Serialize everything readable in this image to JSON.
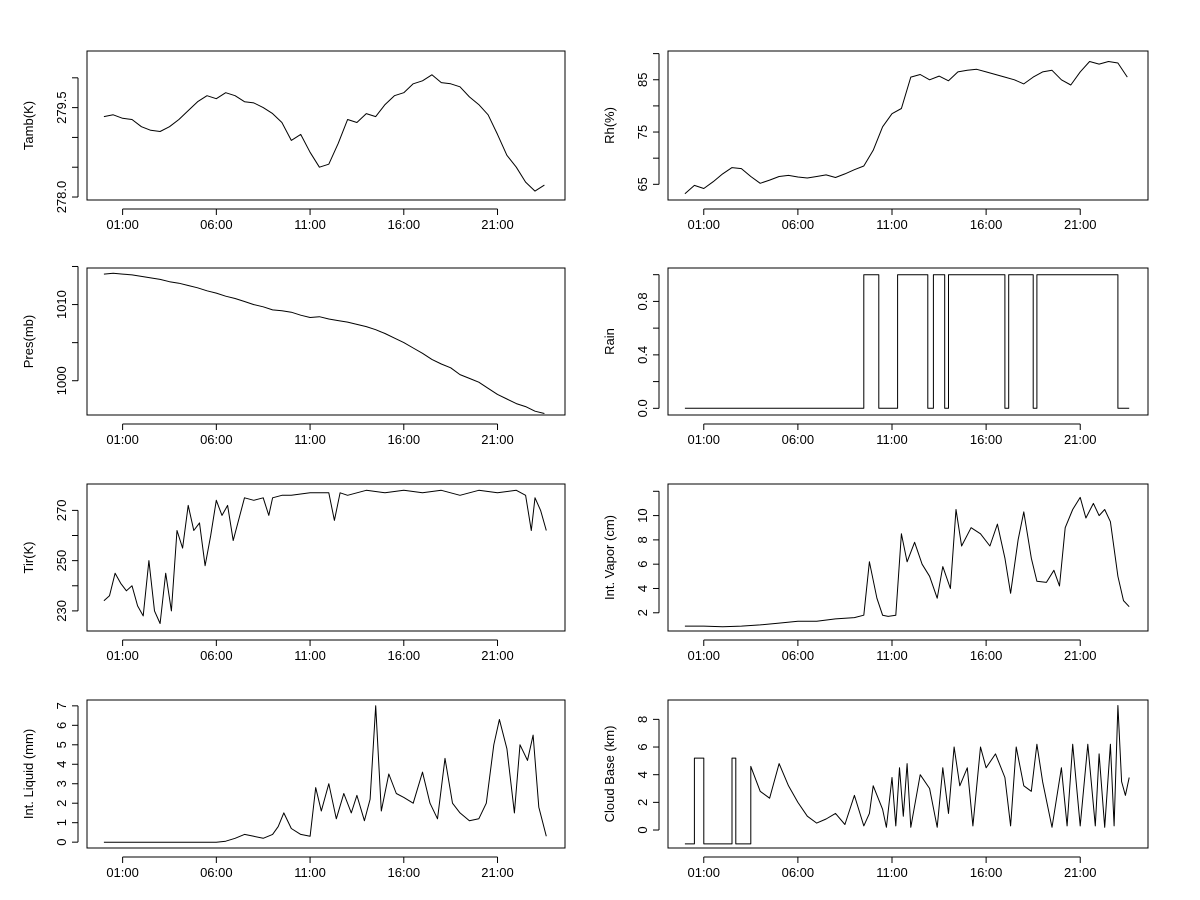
{
  "chart_data": [
    {
      "type": "line",
      "ylabel": "Tamb(K)",
      "x_ticks": [
        "01:00",
        "06:00",
        "11:00",
        "16:00",
        "21:00"
      ],
      "y_ticks": [
        "278.0",
        "279.5"
      ],
      "minor_y_ticks": [
        278.0,
        278.5,
        279.0,
        279.5,
        280.0
      ],
      "xlim": [
        -0.9,
        24.6
      ],
      "ylim": [
        277.95,
        280.45
      ],
      "series": [
        {
          "x": [
            0.0,
            0.5,
            1.0,
            1.5,
            2.0,
            2.5,
            3.0,
            3.5,
            4.0,
            4.5,
            5.0,
            5.5,
            6.0,
            6.5,
            7.0,
            7.5,
            8.0,
            8.5,
            9.0,
            9.5,
            10.0,
            10.5,
            11.0,
            11.5,
            12.0,
            12.5,
            13.0,
            13.5,
            14.0,
            14.5,
            15.0,
            15.5,
            16.0,
            16.5,
            17.0,
            17.5,
            18.0,
            18.5,
            19.0,
            19.5,
            20.0,
            20.5,
            21.0,
            21.5,
            22.0,
            22.5,
            23.0,
            23.5
          ],
          "y": [
            279.35,
            279.38,
            279.32,
            279.3,
            279.18,
            279.12,
            279.1,
            279.18,
            279.3,
            279.45,
            279.6,
            279.7,
            279.65,
            279.75,
            279.7,
            279.6,
            279.58,
            279.5,
            279.4,
            279.25,
            278.95,
            279.05,
            278.75,
            278.5,
            278.55,
            278.9,
            279.3,
            279.25,
            279.4,
            279.35,
            279.55,
            279.7,
            279.75,
            279.9,
            279.95,
            280.05,
            279.92,
            279.9,
            279.85,
            279.68,
            279.55,
            279.38,
            279.05,
            278.7,
            278.5,
            278.25,
            278.1,
            278.2
          ]
        }
      ]
    },
    {
      "type": "line",
      "ylabel": "Rh(%)",
      "x_ticks": [
        "01:00",
        "06:00",
        "11:00",
        "16:00",
        "21:00"
      ],
      "y_ticks": [
        "65",
        "75",
        "85"
      ],
      "minor_y_ticks": [
        65,
        70,
        75,
        80,
        85,
        90
      ],
      "xlim": [
        -0.9,
        24.6
      ],
      "ylim": [
        62,
        90.5
      ],
      "series": [
        {
          "x": [
            0.0,
            0.5,
            1.0,
            1.5,
            2.0,
            2.5,
            3.0,
            3.5,
            4.0,
            4.5,
            5.0,
            5.5,
            6.0,
            6.5,
            7.0,
            7.5,
            8.0,
            8.5,
            9.0,
            9.5,
            10.0,
            10.5,
            11.0,
            11.5,
            12.0,
            12.5,
            13.0,
            13.5,
            14.0,
            14.5,
            15.0,
            15.5,
            16.0,
            16.5,
            17.0,
            17.5,
            18.0,
            18.5,
            19.0,
            19.5,
            20.0,
            20.5,
            21.0,
            21.5,
            22.0,
            22.5,
            23.0,
            23.5
          ],
          "y": [
            63.2,
            64.8,
            64.2,
            65.5,
            67.0,
            68.2,
            68.0,
            66.5,
            65.2,
            65.8,
            66.5,
            66.7,
            66.4,
            66.2,
            66.5,
            66.8,
            66.3,
            67.0,
            67.8,
            68.5,
            71.5,
            76.0,
            78.5,
            79.5,
            85.5,
            86.0,
            85.0,
            85.7,
            84.8,
            86.5,
            86.8,
            87.0,
            86.5,
            86.0,
            85.5,
            85.0,
            84.2,
            85.5,
            86.5,
            86.8,
            85.0,
            84.0,
            86.5,
            88.5,
            88.0,
            88.5,
            88.2,
            85.5
          ]
        }
      ]
    },
    {
      "type": "line",
      "ylabel": "Pres(mb)",
      "x_ticks": [
        "01:00",
        "06:00",
        "11:00",
        "16:00",
        "21:00"
      ],
      "y_ticks": [
        "1000",
        "1010"
      ],
      "minor_y_ticks": [
        1000,
        1005,
        1010,
        1015
      ],
      "xlim": [
        -0.9,
        24.6
      ],
      "ylim": [
        995.5,
        1014.8
      ],
      "series": [
        {
          "x": [
            0.0,
            0.5,
            1.0,
            1.5,
            2.0,
            2.5,
            3.0,
            3.5,
            4.0,
            4.5,
            5.0,
            5.5,
            6.0,
            6.5,
            7.0,
            7.5,
            8.0,
            8.5,
            9.0,
            9.5,
            10.0,
            10.5,
            11.0,
            11.5,
            12.0,
            12.5,
            13.0,
            13.5,
            14.0,
            14.5,
            15.0,
            15.5,
            16.0,
            16.5,
            17.0,
            17.5,
            18.0,
            18.5,
            19.0,
            19.5,
            20.0,
            20.5,
            21.0,
            21.5,
            22.0,
            22.5,
            23.0,
            23.5
          ],
          "y": [
            1014.0,
            1014.1,
            1014.0,
            1013.9,
            1013.7,
            1013.5,
            1013.3,
            1013.0,
            1012.8,
            1012.5,
            1012.2,
            1011.8,
            1011.5,
            1011.1,
            1010.8,
            1010.4,
            1010.0,
            1009.7,
            1009.3,
            1009.2,
            1009.0,
            1008.6,
            1008.3,
            1008.4,
            1008.1,
            1007.9,
            1007.7,
            1007.4,
            1007.1,
            1006.7,
            1006.2,
            1005.6,
            1005.0,
            1004.3,
            1003.6,
            1002.8,
            1002.2,
            1001.7,
            1000.8,
            1000.3,
            999.8,
            999.0,
            998.2,
            997.6,
            997.0,
            996.6,
            996.0,
            995.7
          ]
        }
      ]
    },
    {
      "type": "line",
      "ylabel": "Rain",
      "x_ticks": [
        "01:00",
        "06:00",
        "11:00",
        "16:00",
        "21:00"
      ],
      "y_ticks": [
        "0.0",
        "0.4",
        "0.8"
      ],
      "minor_y_ticks": [
        0.0,
        0.2,
        0.4,
        0.6,
        0.8,
        1.0
      ],
      "xlim": [
        -0.9,
        24.6
      ],
      "ylim": [
        -0.05,
        1.05
      ],
      "series": [
        {
          "x": [
            0.0,
            9.5,
            9.5,
            10.3,
            10.3,
            11.3,
            11.3,
            12.9,
            12.9,
            13.2,
            13.2,
            13.8,
            13.8,
            14.0,
            14.0,
            17.0,
            17.0,
            17.2,
            17.2,
            18.5,
            18.5,
            18.7,
            18.7,
            23.0,
            23.0,
            23.6
          ],
          "y": [
            0,
            0,
            1,
            1,
            0,
            0,
            1,
            1,
            0,
            0,
            1,
            1,
            0,
            0,
            1,
            1,
            0,
            0,
            1,
            1,
            0,
            0,
            1,
            1,
            0,
            0
          ]
        }
      ]
    },
    {
      "type": "line",
      "ylabel": "Tir(K)",
      "x_ticks": [
        "01:00",
        "06:00",
        "11:00",
        "16:00",
        "21:00"
      ],
      "y_ticks": [
        "230",
        "250",
        "270"
      ],
      "minor_y_ticks": [
        230,
        240,
        250,
        260,
        270
      ],
      "xlim": [
        -0.9,
        24.6
      ],
      "ylim": [
        222,
        280.5
      ],
      "series": [
        {
          "x": [
            0.0,
            0.3,
            0.6,
            0.9,
            1.2,
            1.5,
            1.8,
            2.1,
            2.4,
            2.7,
            3.0,
            3.3,
            3.6,
            3.9,
            4.2,
            4.5,
            4.8,
            5.1,
            5.4,
            5.7,
            6.0,
            6.3,
            6.6,
            6.9,
            7.5,
            8.0,
            8.5,
            8.8,
            9.0,
            9.5,
            10.0,
            11.0,
            12.0,
            12.3,
            12.6,
            13.0,
            14.0,
            15.0,
            16.0,
            17.0,
            18.0,
            19.0,
            20.0,
            21.0,
            22.0,
            22.5,
            22.8,
            23.0,
            23.3,
            23.6
          ],
          "y": [
            234,
            236,
            245,
            241,
            238,
            240,
            232,
            228,
            250,
            230,
            225,
            245,
            230,
            262,
            255,
            272,
            262,
            265,
            248,
            260,
            274,
            268,
            272,
            258,
            275,
            274,
            275,
            268,
            275,
            276,
            276,
            277,
            277,
            266,
            277,
            276,
            278,
            277,
            278,
            277,
            278,
            276,
            278,
            277,
            278,
            276,
            262,
            275,
            270,
            262
          ]
        }
      ]
    },
    {
      "type": "line",
      "ylabel": "Int. Vapor (cm)",
      "x_ticks": [
        "01:00",
        "06:00",
        "11:00",
        "16:00",
        "21:00"
      ],
      "y_ticks": [
        "2",
        "4",
        "6",
        "8",
        "10"
      ],
      "minor_y_ticks": [
        2,
        4,
        6,
        8,
        10,
        12
      ],
      "xlim": [
        -0.9,
        24.6
      ],
      "ylim": [
        0.5,
        12.6
      ],
      "series": [
        {
          "x": [
            0.0,
            1.0,
            2.0,
            3.0,
            4.0,
            5.0,
            6.0,
            7.0,
            8.0,
            9.0,
            9.5,
            9.8,
            10.2,
            10.5,
            10.8,
            11.2,
            11.5,
            11.8,
            12.2,
            12.6,
            13.0,
            13.4,
            13.7,
            14.1,
            14.4,
            14.7,
            15.2,
            15.7,
            16.2,
            16.6,
            17.0,
            17.3,
            17.7,
            18.0,
            18.4,
            18.7,
            19.2,
            19.6,
            19.9,
            20.2,
            20.6,
            21.0,
            21.3,
            21.7,
            22.0,
            22.3,
            22.6,
            23.0,
            23.3,
            23.6
          ],
          "y": [
            0.9,
            0.9,
            0.85,
            0.9,
            1.0,
            1.15,
            1.3,
            1.3,
            1.5,
            1.6,
            1.8,
            6.2,
            3.2,
            1.8,
            1.7,
            1.8,
            8.5,
            6.2,
            7.8,
            6.0,
            5.0,
            3.2,
            5.8,
            4.0,
            10.5,
            7.5,
            9.0,
            8.5,
            7.5,
            9.3,
            6.5,
            3.6,
            8.0,
            10.3,
            6.5,
            4.6,
            4.5,
            5.5,
            4.2,
            9.0,
            10.5,
            11.5,
            9.8,
            11.0,
            10.0,
            10.5,
            9.5,
            5.0,
            3.0,
            2.5
          ]
        }
      ]
    },
    {
      "type": "line",
      "ylabel": "Int. Liquid (mm)",
      "x_ticks": [
        "01:00",
        "06:00",
        "11:00",
        "16:00",
        "21:00"
      ],
      "y_ticks": [
        "0",
        "1",
        "2",
        "3",
        "4",
        "5",
        "6",
        "7"
      ],
      "minor_y_ticks": [
        0,
        1,
        2,
        3,
        4,
        5,
        6,
        7
      ],
      "xlim": [
        -0.9,
        24.6
      ],
      "ylim": [
        -0.3,
        7.3
      ],
      "series": [
        {
          "x": [
            0.0,
            1.0,
            2.0,
            3.0,
            4.0,
            5.0,
            6.0,
            6.5,
            7.0,
            7.5,
            8.0,
            8.5,
            9.0,
            9.3,
            9.6,
            10.0,
            10.5,
            11.0,
            11.3,
            11.6,
            12.0,
            12.4,
            12.8,
            13.2,
            13.5,
            13.9,
            14.2,
            14.5,
            14.8,
            15.2,
            15.6,
            16.0,
            16.5,
            17.0,
            17.4,
            17.8,
            18.2,
            18.6,
            19.0,
            19.5,
            20.0,
            20.4,
            20.8,
            21.1,
            21.5,
            21.9,
            22.2,
            22.6,
            22.9,
            23.2,
            23.6
          ],
          "y": [
            0,
            0,
            0,
            0,
            0,
            0,
            0,
            0.05,
            0.2,
            0.4,
            0.3,
            0.2,
            0.4,
            0.8,
            1.5,
            0.7,
            0.4,
            0.3,
            2.8,
            1.6,
            3.0,
            1.2,
            2.5,
            1.5,
            2.4,
            1.1,
            2.2,
            7.0,
            1.6,
            3.5,
            2.5,
            2.3,
            2.0,
            3.6,
            2.0,
            1.2,
            4.3,
            2.0,
            1.5,
            1.1,
            1.2,
            2.0,
            5.0,
            6.3,
            4.8,
            1.5,
            5.0,
            4.2,
            5.5,
            1.8,
            0.3
          ]
        }
      ]
    },
    {
      "type": "line",
      "ylabel": "Cloud Base (km)",
      "x_ticks": [
        "01:00",
        "06:00",
        "11:00",
        "16:00",
        "21:00"
      ],
      "y_ticks": [
        "0",
        "2",
        "4",
        "6",
        "8"
      ],
      "minor_y_ticks": [
        0,
        2,
        4,
        6,
        8
      ],
      "xlim": [
        -0.9,
        24.6
      ],
      "ylim": [
        -1.3,
        9.4
      ],
      "series": [
        {
          "x": [
            0.0,
            0.5,
            0.5,
            1.0,
            1.0,
            2.5,
            2.5,
            2.7,
            2.7,
            3.5,
            3.5,
            3.8,
            4.0,
            4.5,
            5.0,
            5.5,
            6.0,
            6.5,
            7.0,
            7.5,
            8.0,
            8.5,
            9.0,
            9.5,
            9.8,
            10.0,
            10.5,
            10.7,
            11.0,
            11.2,
            11.4,
            11.6,
            11.8,
            12.0,
            12.5,
            13.0,
            13.4,
            13.7,
            14.0,
            14.3,
            14.6,
            15.0,
            15.3,
            15.7,
            16.0,
            16.5,
            17.0,
            17.3,
            17.6,
            18.0,
            18.4,
            18.7,
            19.0,
            19.5,
            20.0,
            20.3,
            20.6,
            21.0,
            21.4,
            21.8,
            22.0,
            22.3,
            22.6,
            22.8,
            23.0,
            23.2,
            23.4,
            23.6
          ],
          "y": [
            -1.0,
            -1.0,
            5.2,
            5.2,
            -1.0,
            -1.0,
            5.2,
            5.2,
            -1.0,
            -1.0,
            4.6,
            3.5,
            2.8,
            2.3,
            4.8,
            3.2,
            2.0,
            1.0,
            0.5,
            0.8,
            1.2,
            0.4,
            2.5,
            0.3,
            1.2,
            3.2,
            1.5,
            0.2,
            3.8,
            0.3,
            4.5,
            1.0,
            4.8,
            0.2,
            4.0,
            3.0,
            0.2,
            4.5,
            1.2,
            6.0,
            3.2,
            4.5,
            0.3,
            6.0,
            4.5,
            5.5,
            3.8,
            0.3,
            6.0,
            3.2,
            2.8,
            6.2,
            3.5,
            0.2,
            4.5,
            0.3,
            6.2,
            0.3,
            6.2,
            0.3,
            5.5,
            0.2,
            6.2,
            0.3,
            9.0,
            3.5,
            2.5,
            3.8
          ]
        }
      ]
    }
  ]
}
